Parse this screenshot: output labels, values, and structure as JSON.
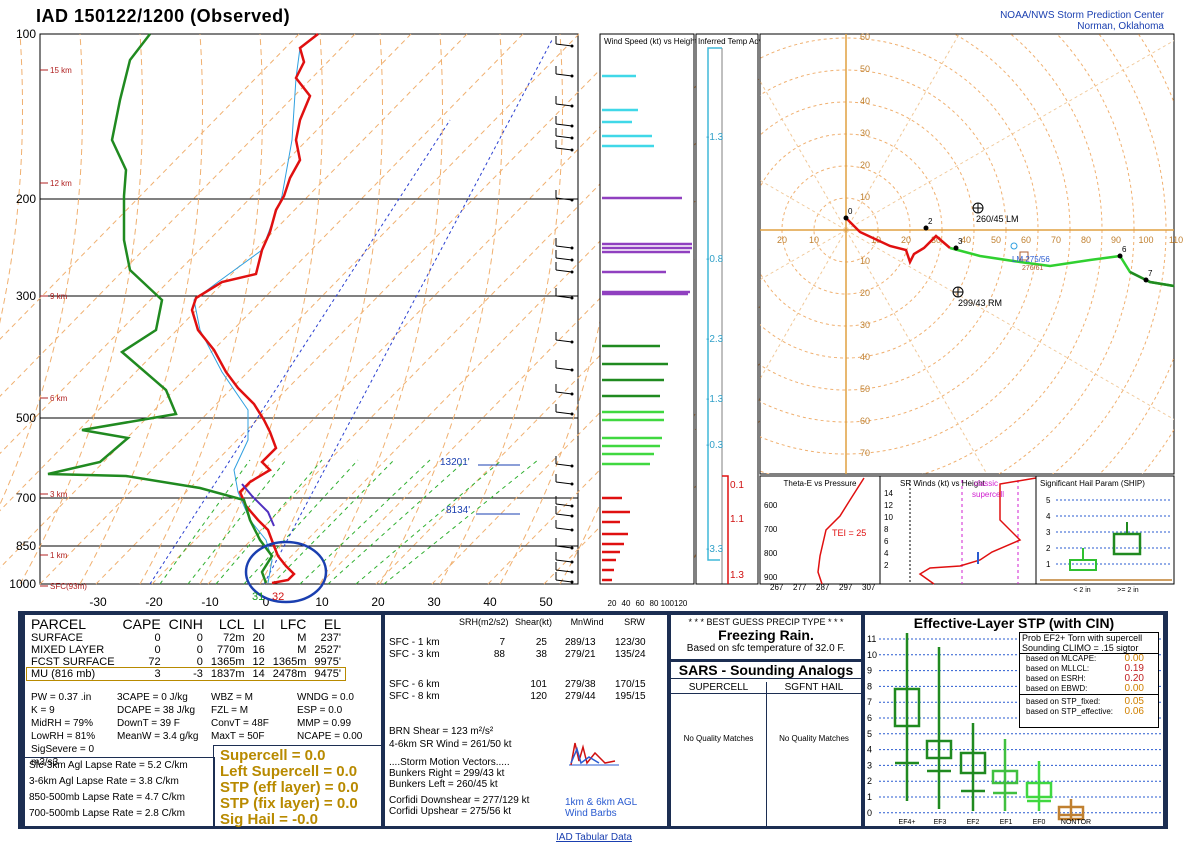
{
  "header": {
    "title": "IAD   150122/1200  (Observed)",
    "spc_line1": "NOAA/NWS Storm Prediction Center",
    "spc_line2": "Norman, Oklahoma"
  },
  "chart_data": [
    {
      "type": "line",
      "name": "skew-t",
      "pressure_ticks": [
        "100",
        "200",
        "300",
        "500",
        "700",
        "850",
        "1000"
      ],
      "temp_ticks": [
        "-30",
        "-20",
        "-10",
        "0",
        "10",
        "20",
        "30",
        "40",
        "50"
      ],
      "height_labels": [
        "15 km",
        "12 km",
        "9 km",
        "6 km",
        "3 km",
        "1 km",
        "SFC(93m)"
      ],
      "surface_temp": "32",
      "surface_dew": "31",
      "annotations": [
        "13201'",
        "8134'"
      ]
    },
    {
      "type": "bar",
      "name": "wind-speed-vs-height",
      "title": "Wind Speed (kt) vs Height",
      "ticks": [
        "20",
        "40",
        "60",
        "80",
        "100120"
      ]
    },
    {
      "type": "line",
      "name": "temp-advection",
      "title": "Inferred Temp Advection (C / hr)",
      "labels": [
        "-1.3",
        "-0.8",
        "-2.3",
        "-1.3",
        "-0.3",
        "0.1",
        "1.1",
        "-3.3",
        "1.3"
      ]
    },
    {
      "type": "line",
      "name": "hodograph",
      "x_ticks": [
        "20",
        "10",
        "10",
        "20",
        "30",
        "40",
        "50",
        "60",
        "70",
        "80",
        "90",
        "100",
        "110"
      ],
      "ring_labels": [
        "60",
        "50",
        "40",
        "30",
        "20",
        "10",
        "10",
        "20",
        "30",
        "40",
        "50",
        "60",
        "70",
        "80"
      ],
      "point_labels": [
        "0",
        "2",
        "3",
        "6",
        "7"
      ],
      "lm": "260/45 LM",
      "rm": "299/43 RM",
      "mean": "LM 275/56",
      "mean2": "276/61"
    },
    {
      "type": "line",
      "name": "theta-e-vs-pressure",
      "title": "Theta-E vs Pressure",
      "y_ticks": [
        "600",
        "700",
        "800",
        "900"
      ],
      "x_ticks": [
        "267",
        "277",
        "287",
        "297",
        "307"
      ],
      "tei": "TEI = 25"
    },
    {
      "type": "line",
      "name": "sr-winds-vs-height",
      "title": "SR Winds (kt) vs Height",
      "label": "classic supercell",
      "y_ticks": [
        "14",
        "12",
        "10",
        "8",
        "6",
        "4",
        "2"
      ]
    },
    {
      "type": "table",
      "name": "ship",
      "title": "Significant Hail Param (SHIP)",
      "y_ticks": [
        "5",
        "4",
        "3",
        "2",
        "1"
      ],
      "categories": [
        "< 2 in",
        ">= 2 in"
      ]
    },
    {
      "type": "table",
      "name": "effective-layer-stp",
      "title": "Effective-Layer STP (with CIN)",
      "y_ticks": [
        "11",
        "10",
        "9",
        "8",
        "7",
        "6",
        "5",
        "4",
        "3",
        "2",
        "1",
        "0"
      ],
      "categories": [
        "EF4+",
        "EF3",
        "EF2",
        "EF1",
        "EF0",
        "NONTOR"
      ]
    }
  ],
  "parcel": {
    "headers": [
      "PARCEL",
      "CAPE",
      "CINH",
      "LCL",
      "LI",
      "LFC",
      "EL"
    ],
    "rows": [
      [
        "SURFACE",
        "0",
        "0",
        "72m",
        "20",
        "M",
        "237'"
      ],
      [
        "MIXED LAYER",
        "0",
        "0",
        "770m",
        "16",
        "M",
        "2527'"
      ],
      [
        "FCST SURFACE",
        "72",
        "0",
        "1365m",
        "12",
        "1365m",
        "9975'"
      ],
      [
        "MU  (816 mb)",
        "3",
        "-3",
        "1837m",
        "14",
        "2478m",
        "9475'"
      ]
    ],
    "indices_col1": [
      "PW = 0.37 .in",
      "K = 9",
      "MidRH = 79%",
      "LowRH = 81%",
      "SigSevere = 0 m3/s3"
    ],
    "indices_col2": [
      "3CAPE = 0 J/kg",
      "DCAPE = 38 J/kg",
      "DownT = 39 F",
      "MeanW = 3.4 g/kg"
    ],
    "indices_col3": [
      "WBZ = M",
      "FZL = M",
      "ConvT = 48F",
      "MaxT = 50F"
    ],
    "indices_col4": [
      "WNDG = 0.0",
      "ESP = 0.0",
      "MMP = 0.99",
      "NCAPE = 0.00"
    ],
    "lapse": [
      "Sfc-3km Agl Lapse Rate =  5.2 C/km",
      "3-6km Agl Lapse Rate =   3.8 C/km",
      "850-500mb Lapse Rate =  4.7 C/km",
      "700-500mb Lapse Rate =  2.8 C/km"
    ],
    "composite": [
      "Supercell = 0.0",
      "Left Supercell = 0.0",
      "STP (eff layer) = 0.0",
      "STP (fix layer) = 0.0",
      "Sig Hail = -0.0"
    ]
  },
  "kinematics": {
    "headers": [
      "SRH(m2/s2)",
      "Shear(kt)",
      "MnWind",
      "SRW"
    ],
    "rows": [
      [
        "SFC - 1 km",
        "7",
        "25",
        "289/13",
        "123/30"
      ],
      [
        "SFC - 3 km",
        "88",
        "38",
        "279/21",
        "135/24"
      ],
      [
        "SFC - 6 km",
        "",
        "101",
        "279/38",
        "170/15"
      ],
      [
        "SFC - 8 km",
        "",
        "120",
        "279/44",
        "195/15"
      ]
    ],
    "brn": "BRN Shear =  123 m²/s²",
    "srwind": "4-6km SR Wind =         261/50 kt",
    "motion_title": "....Storm Motion Vectors.....",
    "motion": [
      "Bunkers Right =           299/43 kt",
      "Bunkers Left =             260/45 kt"
    ],
    "corfidi": [
      "Corfidi Downshear = 277/129 kt",
      "Corfidi Upshear =       275/56 kt"
    ],
    "barbs_label1": "1km & 6km AGL",
    "barbs_label2": "Wind Barbs"
  },
  "precip": {
    "title": "* * * BEST GUESS PRECIP TYPE * * *",
    "value": "Freezing Rain.",
    "sub": "Based on sfc temperature of 32.0 F."
  },
  "sars": {
    "title": "SARS - Sounding Analogs",
    "col1": "SUPERCELL",
    "col2": "SGFNT HAIL",
    "none1": "No Quality Matches",
    "none2": "No Quality Matches"
  },
  "stp_prob": {
    "line1": "Prob EF2+ Torn with supercell",
    "line2": "Sounding CLIMO = .15 sigtor",
    "rows": [
      [
        "based on MLCAPE:",
        "0.00"
      ],
      [
        "based on MLLCL:",
        "0.19"
      ],
      [
        "based on ESRH:",
        "0.20"
      ],
      [
        "based on EBWD:",
        "0.00"
      ],
      [
        "based on STP_fixed:",
        "0.05"
      ],
      [
        "based on STP_effective:",
        "0.06"
      ]
    ]
  },
  "footer": {
    "link": "IAD Tabular Data"
  }
}
